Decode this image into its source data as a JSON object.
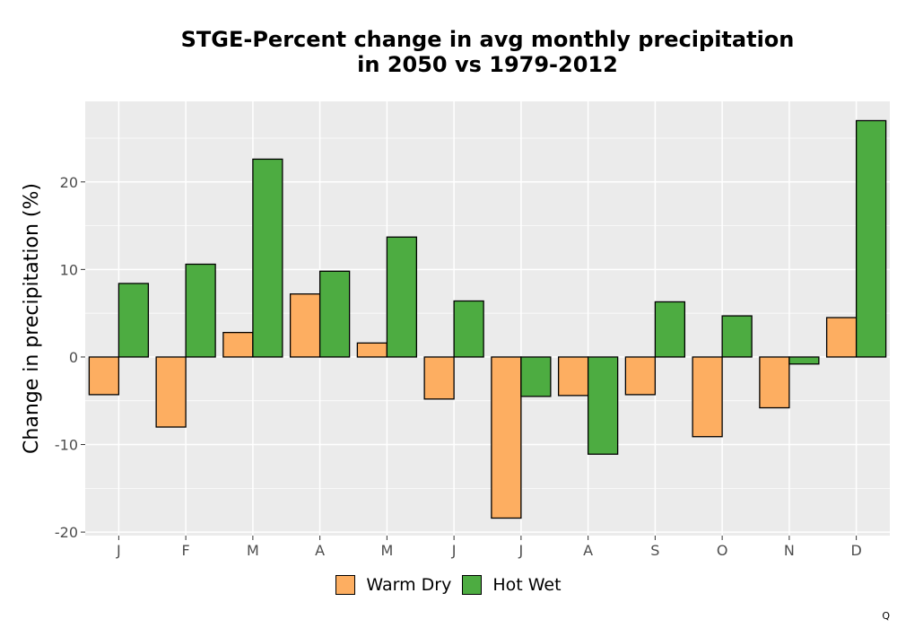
{
  "chart_data": {
    "type": "bar",
    "title_lines": [
      "STGE-Percent change in avg monthly precipitation",
      "in 2050 vs 1979-2012"
    ],
    "xlabel": "",
    "ylabel": "Change in precipitation (%)",
    "categories": [
      "J",
      "F",
      "M",
      "A",
      "M",
      "J",
      "J",
      "A",
      "S",
      "O",
      "N",
      "D"
    ],
    "series": [
      {
        "name": "Warm Dry",
        "color": "#FDAE61",
        "values": [
          -4.3,
          -8.0,
          2.8,
          7.2,
          1.6,
          -4.8,
          -18.4,
          -4.4,
          -4.3,
          -9.1,
          -5.8,
          4.5
        ]
      },
      {
        "name": "Hot Wet",
        "color": "#4DAC41",
        "values": [
          8.4,
          10.6,
          22.6,
          9.8,
          13.7,
          6.4,
          -4.5,
          -11.1,
          6.3,
          4.7,
          -0.8,
          27.0
        ]
      }
    ],
    "yticks": [
      -20,
      -10,
      0,
      10,
      20
    ],
    "ytick_labels": [
      "-20",
      "-10",
      "0",
      "10",
      "20"
    ],
    "ylim": [
      -20.4,
      29.2
    ],
    "grid": true,
    "legend_position": "bottom",
    "panel_color": "#EBEBEB"
  },
  "corner_mark": "Q"
}
